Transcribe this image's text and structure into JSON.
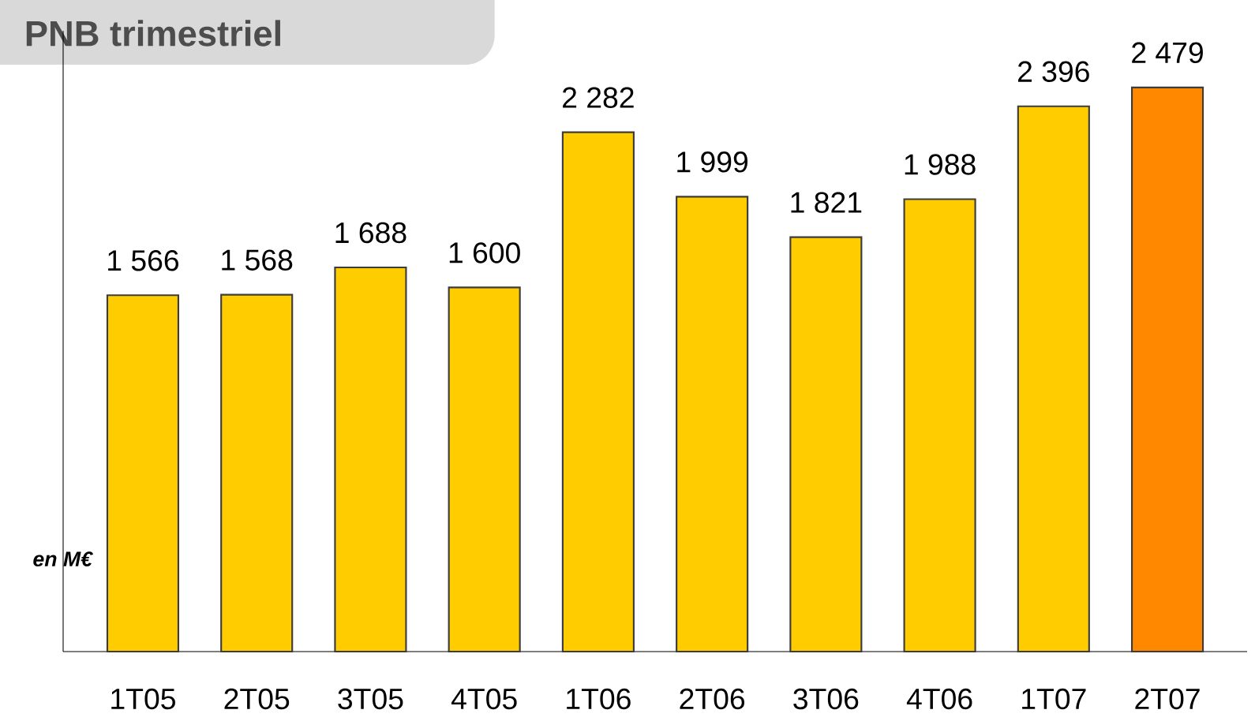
{
  "chart_data": {
    "type": "bar",
    "title": "PNB trimestriel",
    "annotations": [
      "en M€"
    ],
    "categories": [
      "1T05",
      "2T05",
      "3T05",
      "4T05",
      "1T06",
      "2T06",
      "3T06",
      "4T06",
      "1T07",
      "2T07"
    ],
    "values": [
      1566,
      1568,
      1688,
      1600,
      2282,
      1999,
      1821,
      1988,
      2396,
      2479
    ],
    "colors": [
      "#ffcc00",
      "#ffcc00",
      "#ffcc00",
      "#ffcc00",
      "#ffcc00",
      "#ffcc00",
      "#ffcc00",
      "#ffcc00",
      "#ffcc00",
      "#ff8800"
    ],
    "value_labels": [
      "1 566",
      "1 568",
      "1 688",
      "1 600",
      "2 282",
      "1 999",
      "1 821",
      "1 988",
      "2 396",
      "2 479"
    ]
  }
}
